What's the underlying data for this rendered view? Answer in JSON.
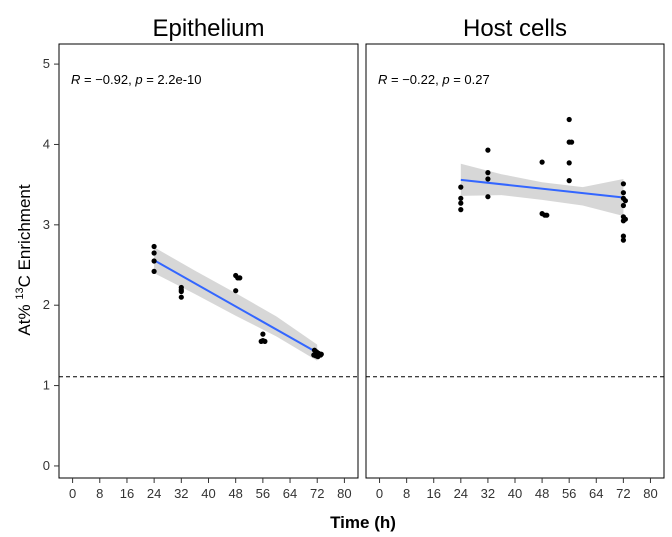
{
  "chart_data": {
    "type": "scatter",
    "xlabel": "Time (h)",
    "ylabel_prefix": "At% ",
    "ylabel_superscript": "13",
    "ylabel_suffix": "C Enrichment",
    "xlim": [
      -4,
      84
    ],
    "ylim": [
      -0.15,
      5.25
    ],
    "x_ticks": [
      0,
      8,
      16,
      24,
      32,
      40,
      48,
      56,
      64,
      72,
      80
    ],
    "y_ticks": [
      0,
      1,
      2,
      3,
      4,
      5
    ],
    "reference_line_y": 1.11,
    "panels": [
      {
        "title": "Epithelium",
        "stat": {
          "R": "−0.92",
          "p": "2.2e-10"
        },
        "points": [
          {
            "x": 24,
            "y": 2.73
          },
          {
            "x": 24,
            "y": 2.65
          },
          {
            "x": 24,
            "y": 2.55
          },
          {
            "x": 24,
            "y": 2.42
          },
          {
            "x": 32,
            "y": 2.22
          },
          {
            "x": 32,
            "y": 2.19
          },
          {
            "x": 32,
            "y": 2.17
          },
          {
            "x": 32,
            "y": 2.1
          },
          {
            "x": 48,
            "y": 2.37
          },
          {
            "x": 48.6,
            "y": 2.34
          },
          {
            "x": 49.2,
            "y": 2.34
          },
          {
            "x": 48,
            "y": 2.18
          },
          {
            "x": 56,
            "y": 1.64
          },
          {
            "x": 56,
            "y": 1.56
          },
          {
            "x": 56.6,
            "y": 1.55
          },
          {
            "x": 55.5,
            "y": 1.55
          },
          {
            "x": 71.2,
            "y": 1.44
          },
          {
            "x": 71.8,
            "y": 1.42
          },
          {
            "x": 72.4,
            "y": 1.4
          },
          {
            "x": 73.0,
            "y": 1.38
          },
          {
            "x": 71.6,
            "y": 1.37
          },
          {
            "x": 72.2,
            "y": 1.36
          },
          {
            "x": 73.2,
            "y": 1.39
          },
          {
            "x": 71.0,
            "y": 1.38
          }
        ],
        "fit": {
          "x": [
            24,
            72
          ],
          "y": [
            2.56,
            1.41
          ]
        },
        "band": {
          "x": [
            24,
            36,
            48,
            60,
            72
          ],
          "lower": [
            2.4,
            2.14,
            1.87,
            1.61,
            1.31
          ],
          "upper": [
            2.72,
            2.43,
            2.15,
            1.86,
            1.51
          ]
        }
      },
      {
        "title": "Host cells",
        "stat": {
          "R": "−0.22",
          "p": "0.27"
        },
        "points": [
          {
            "x": 24,
            "y": 3.47
          },
          {
            "x": 24,
            "y": 3.33
          },
          {
            "x": 24,
            "y": 3.27
          },
          {
            "x": 24,
            "y": 3.19
          },
          {
            "x": 32,
            "y": 3.93
          },
          {
            "x": 32,
            "y": 3.65
          },
          {
            "x": 32,
            "y": 3.57
          },
          {
            "x": 32,
            "y": 3.35
          },
          {
            "x": 48,
            "y": 3.78
          },
          {
            "x": 48,
            "y": 3.14
          },
          {
            "x": 48.8,
            "y": 3.12
          },
          {
            "x": 49.4,
            "y": 3.12
          },
          {
            "x": 56,
            "y": 4.31
          },
          {
            "x": 56,
            "y": 4.03
          },
          {
            "x": 56.7,
            "y": 4.03
          },
          {
            "x": 56,
            "y": 3.77
          },
          {
            "x": 56,
            "y": 3.55
          },
          {
            "x": 72,
            "y": 3.51
          },
          {
            "x": 72,
            "y": 3.4
          },
          {
            "x": 72,
            "y": 3.33
          },
          {
            "x": 72.6,
            "y": 3.3
          },
          {
            "x": 72,
            "y": 3.24
          },
          {
            "x": 72,
            "y": 3.1
          },
          {
            "x": 72.6,
            "y": 3.07
          },
          {
            "x": 72,
            "y": 3.05
          },
          {
            "x": 72,
            "y": 2.86
          },
          {
            "x": 72,
            "y": 2.81
          }
        ],
        "fit": {
          "x": [
            24,
            72
          ],
          "y": [
            3.56,
            3.34
          ]
        },
        "band": {
          "x": [
            24,
            36,
            48,
            60,
            72
          ],
          "lower": [
            3.36,
            3.37,
            3.31,
            3.24,
            3.11
          ],
          "upper": [
            3.76,
            3.63,
            3.53,
            3.47,
            3.57
          ]
        }
      }
    ]
  },
  "colors": {
    "fit_line": "#3366ff",
    "band": "#d3d3d3",
    "points": "#000000",
    "reference_line": "#000000"
  }
}
